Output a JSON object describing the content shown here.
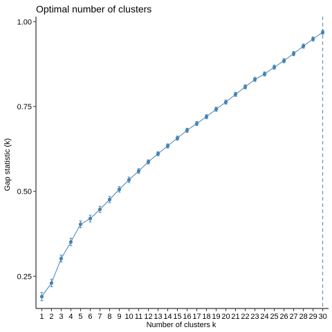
{
  "chart_data": {
    "type": "line",
    "title": "Optimal number of clusters",
    "xlabel": "Number of clusters k",
    "ylabel": "Gap statistic (k)",
    "categories": [
      "1",
      "2",
      "3",
      "4",
      "5",
      "6",
      "7",
      "8",
      "9",
      "10",
      "11",
      "12",
      "13",
      "14",
      "15",
      "16",
      "17",
      "18",
      "19",
      "20",
      "21",
      "22",
      "23",
      "24",
      "25",
      "26",
      "27",
      "28",
      "29",
      "30"
    ],
    "series": [
      {
        "values": [
          0.19,
          0.23,
          0.302,
          0.351,
          0.403,
          0.42,
          0.447,
          0.476,
          0.506,
          0.534,
          0.56,
          0.587,
          0.611,
          0.634,
          0.657,
          0.68,
          0.7,
          0.72,
          0.742,
          0.763,
          0.786,
          0.808,
          0.83,
          0.846,
          0.866,
          0.885,
          0.906,
          0.928,
          0.949,
          0.969
        ],
        "errors": [
          0.012,
          0.011,
          0.01,
          0.011,
          0.01,
          0.01,
          0.009,
          0.009,
          0.008,
          0.008,
          0.007,
          0.006,
          0.006,
          0.006,
          0.006,
          0.006,
          0.006,
          0.006,
          0.006,
          0.006,
          0.006,
          0.006,
          0.006,
          0.006,
          0.006,
          0.006,
          0.006,
          0.006,
          0.006,
          0.006
        ]
      }
    ],
    "optimal_k": 30,
    "yticks": [
      0.25,
      0.5,
      0.75,
      1.0
    ],
    "ytick_labels": [
      "0.25",
      "0.50",
      "0.75",
      "1.00"
    ],
    "ylim": [
      0.155,
      1.015
    ],
    "color": "#4682B4",
    "grid": false,
    "legend": "none"
  }
}
